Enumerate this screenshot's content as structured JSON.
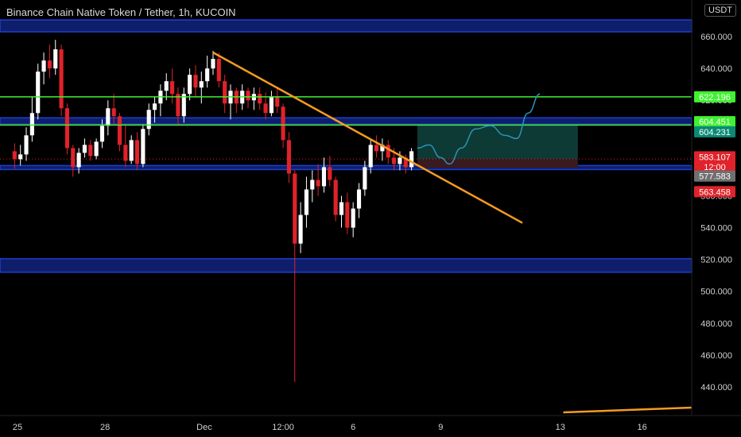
{
  "header": {
    "symbol_line": "Binance Chain Native Token / Tether, 1h, KUCOIN",
    "currency": "USDT"
  },
  "colors": {
    "bg": "#000000",
    "up": "#ffffff",
    "down": "#e0222a",
    "zone": "#1e3fd0",
    "zone_fill": "#0f1e6a",
    "green": "#3ff22f",
    "orange": "#f59a22",
    "projection": "#2b93b6",
    "target_fill": "#0d3a35",
    "stop_fill": "#3a1a1e"
  },
  "chart_data": {
    "type": "candlestick",
    "x_ticks": [
      "25",
      "28",
      "Dec",
      "12:00",
      "6",
      "9",
      "13",
      "16"
    ],
    "y_ticks": [
      "440.000",
      "460.000",
      "480.000",
      "500.000",
      "520.000",
      "540.000",
      "560.000",
      "580.000",
      "600.000",
      "620.000",
      "640.000",
      "660.000"
    ],
    "ylim": [
      422,
      683
    ],
    "x_tick_values": [
      1,
      31,
      65,
      92,
      116,
      146,
      187,
      215
    ],
    "xlim": [
      -5,
      232
    ],
    "ohlc": [
      {
        "i": 0,
        "o": 588,
        "h": 593,
        "l": 577,
        "c": 583
      },
      {
        "i": 2,
        "o": 583,
        "h": 592,
        "l": 579,
        "c": 586
      },
      {
        "i": 4,
        "o": 586,
        "h": 603,
        "l": 582,
        "c": 598
      },
      {
        "i": 6,
        "o": 598,
        "h": 622,
        "l": 594,
        "c": 612
      },
      {
        "i": 8,
        "o": 612,
        "h": 643,
        "l": 608,
        "c": 638
      },
      {
        "i": 10,
        "o": 638,
        "h": 650,
        "l": 630,
        "c": 645
      },
      {
        "i": 12,
        "o": 645,
        "h": 655,
        "l": 634,
        "c": 640
      },
      {
        "i": 14,
        "o": 640,
        "h": 658,
        "l": 636,
        "c": 652
      },
      {
        "i": 16,
        "o": 652,
        "h": 655,
        "l": 610,
        "c": 615
      },
      {
        "i": 18,
        "o": 615,
        "h": 618,
        "l": 586,
        "c": 590
      },
      {
        "i": 20,
        "o": 590,
        "h": 592,
        "l": 572,
        "c": 578
      },
      {
        "i": 22,
        "o": 578,
        "h": 590,
        "l": 574,
        "c": 587
      },
      {
        "i": 24,
        "o": 587,
        "h": 596,
        "l": 584,
        "c": 592
      },
      {
        "i": 26,
        "o": 592,
        "h": 595,
        "l": 582,
        "c": 585
      },
      {
        "i": 28,
        "o": 585,
        "h": 596,
        "l": 583,
        "c": 594
      },
      {
        "i": 30,
        "o": 594,
        "h": 608,
        "l": 590,
        "c": 604
      },
      {
        "i": 32,
        "o": 604,
        "h": 620,
        "l": 598,
        "c": 615
      },
      {
        "i": 34,
        "o": 615,
        "h": 624,
        "l": 605,
        "c": 610
      },
      {
        "i": 36,
        "o": 610,
        "h": 612,
        "l": 588,
        "c": 592
      },
      {
        "i": 38,
        "o": 592,
        "h": 605,
        "l": 578,
        "c": 582
      },
      {
        "i": 40,
        "o": 582,
        "h": 598,
        "l": 580,
        "c": 595
      },
      {
        "i": 42,
        "o": 595,
        "h": 600,
        "l": 576,
        "c": 580
      },
      {
        "i": 44,
        "o": 580,
        "h": 605,
        "l": 578,
        "c": 602
      },
      {
        "i": 46,
        "o": 602,
        "h": 618,
        "l": 598,
        "c": 614
      },
      {
        "i": 48,
        "o": 614,
        "h": 622,
        "l": 606,
        "c": 618
      },
      {
        "i": 50,
        "o": 618,
        "h": 630,
        "l": 610,
        "c": 626
      },
      {
        "i": 52,
        "o": 626,
        "h": 637,
        "l": 620,
        "c": 632
      },
      {
        "i": 54,
        "o": 632,
        "h": 640,
        "l": 618,
        "c": 624
      },
      {
        "i": 56,
        "o": 624,
        "h": 628,
        "l": 604,
        "c": 610
      },
      {
        "i": 58,
        "o": 610,
        "h": 628,
        "l": 606,
        "c": 624
      },
      {
        "i": 60,
        "o": 624,
        "h": 640,
        "l": 620,
        "c": 636
      },
      {
        "i": 62,
        "o": 636,
        "h": 642,
        "l": 622,
        "c": 628
      },
      {
        "i": 64,
        "o": 628,
        "h": 638,
        "l": 618,
        "c": 632
      },
      {
        "i": 66,
        "o": 632,
        "h": 648,
        "l": 628,
        "c": 640
      },
      {
        "i": 68,
        "o": 640,
        "h": 651,
        "l": 636,
        "c": 646
      },
      {
        "i": 70,
        "o": 646,
        "h": 650,
        "l": 628,
        "c": 632
      },
      {
        "i": 72,
        "o": 632,
        "h": 636,
        "l": 612,
        "c": 618
      },
      {
        "i": 74,
        "o": 618,
        "h": 630,
        "l": 608,
        "c": 626
      },
      {
        "i": 76,
        "o": 626,
        "h": 628,
        "l": 612,
        "c": 618
      },
      {
        "i": 78,
        "o": 618,
        "h": 630,
        "l": 614,
        "c": 626
      },
      {
        "i": 80,
        "o": 626,
        "h": 628,
        "l": 615,
        "c": 620
      },
      {
        "i": 82,
        "o": 620,
        "h": 628,
        "l": 614,
        "c": 624
      },
      {
        "i": 84,
        "o": 624,
        "h": 628,
        "l": 614,
        "c": 618
      },
      {
        "i": 86,
        "o": 618,
        "h": 625,
        "l": 608,
        "c": 612
      },
      {
        "i": 88,
        "o": 612,
        "h": 626,
        "l": 610,
        "c": 622
      },
      {
        "i": 90,
        "o": 622,
        "h": 627,
        "l": 612,
        "c": 616
      },
      {
        "i": 92,
        "o": 616,
        "h": 618,
        "l": 590,
        "c": 595
      },
      {
        "i": 94,
        "o": 595,
        "h": 600,
        "l": 568,
        "c": 574
      },
      {
        "i": 96,
        "o": 574,
        "h": 576,
        "l": 443,
        "c": 530
      },
      {
        "i": 98,
        "o": 530,
        "h": 556,
        "l": 524,
        "c": 548
      },
      {
        "i": 100,
        "o": 548,
        "h": 572,
        "l": 540,
        "c": 564
      },
      {
        "i": 102,
        "o": 564,
        "h": 576,
        "l": 556,
        "c": 570
      },
      {
        "i": 104,
        "o": 570,
        "h": 580,
        "l": 560,
        "c": 566
      },
      {
        "i": 106,
        "o": 566,
        "h": 584,
        "l": 562,
        "c": 578
      },
      {
        "i": 108,
        "o": 578,
        "h": 585,
        "l": 566,
        "c": 570
      },
      {
        "i": 110,
        "o": 570,
        "h": 572,
        "l": 544,
        "c": 548
      },
      {
        "i": 112,
        "o": 548,
        "h": 560,
        "l": 540,
        "c": 556
      },
      {
        "i": 114,
        "o": 556,
        "h": 562,
        "l": 536,
        "c": 540
      },
      {
        "i": 116,
        "o": 540,
        "h": 556,
        "l": 534,
        "c": 552
      },
      {
        "i": 118,
        "o": 552,
        "h": 568,
        "l": 546,
        "c": 564
      },
      {
        "i": 120,
        "o": 564,
        "h": 582,
        "l": 560,
        "c": 578
      },
      {
        "i": 122,
        "o": 578,
        "h": 596,
        "l": 574,
        "c": 592
      },
      {
        "i": 124,
        "o": 592,
        "h": 598,
        "l": 584,
        "c": 588
      },
      {
        "i": 126,
        "o": 588,
        "h": 596,
        "l": 582,
        "c": 592
      },
      {
        "i": 128,
        "o": 592,
        "h": 595,
        "l": 580,
        "c": 584
      },
      {
        "i": 130,
        "o": 584,
        "h": 590,
        "l": 576,
        "c": 580
      },
      {
        "i": 132,
        "o": 580,
        "h": 588,
        "l": 576,
        "c": 584
      },
      {
        "i": 134,
        "o": 584,
        "h": 586,
        "l": 574,
        "c": 578
      },
      {
        "i": 136,
        "o": 578,
        "h": 590,
        "l": 576,
        "c": 588
      }
    ],
    "zones": [
      {
        "top": 670.5,
        "bottom": 663
      },
      {
        "top": 609,
        "bottom": 605
      },
      {
        "top": 579,
        "bottom": 576.5
      },
      {
        "top": 520.5,
        "bottom": 512
      }
    ],
    "green_lines": [
      622.196,
      604.451
    ],
    "trendline": [
      {
        "x": 68,
        "y": 650
      },
      {
        "x": 174,
        "y": 543
      }
    ],
    "lower_trendline": [
      {
        "x": 188,
        "y": 424
      },
      {
        "x": 232,
        "y": 427
      }
    ],
    "projection_path": [
      {
        "x": 138,
        "y": 590
      },
      {
        "x": 142,
        "y": 592
      },
      {
        "x": 146,
        "y": 584
      },
      {
        "x": 149,
        "y": 580
      },
      {
        "x": 153,
        "y": 590
      },
      {
        "x": 158,
        "y": 602
      },
      {
        "x": 163,
        "y": 604
      },
      {
        "x": 168,
        "y": 598
      },
      {
        "x": 172,
        "y": 596
      },
      {
        "x": 176,
        "y": 612
      },
      {
        "x": 180,
        "y": 624
      }
    ],
    "position": {
      "x_start": 138,
      "x_end": 193,
      "entry": 583.107,
      "target": 604.231,
      "stop": 577.583
    },
    "last_price": 583.107,
    "price_tags": [
      {
        "label": "622.196",
        "value": 622.196,
        "color": "#3ff22f",
        "text_color": "#000000"
      },
      {
        "label": "604.451",
        "value": 606.6,
        "color": "#3ff22f",
        "text_color": "#000000"
      },
      {
        "label": "604.231",
        "value": 600.2,
        "color": "#0a8a74",
        "text_color": "#ffffff"
      },
      {
        "label": "583.107",
        "value": 584.5,
        "color": "#e0222a",
        "text_color": "#ffffff"
      },
      {
        "label": "12:00",
        "value": 578.3,
        "color": "#e0222a",
        "text_color": "#ffffff"
      },
      {
        "label": "577.583",
        "value": 572.4,
        "color": "#6f6f6f",
        "text_color": "#ffffff"
      },
      {
        "label": "563.458",
        "value": 562.6,
        "color": "#e0222a",
        "text_color": "#ffffff"
      }
    ]
  }
}
